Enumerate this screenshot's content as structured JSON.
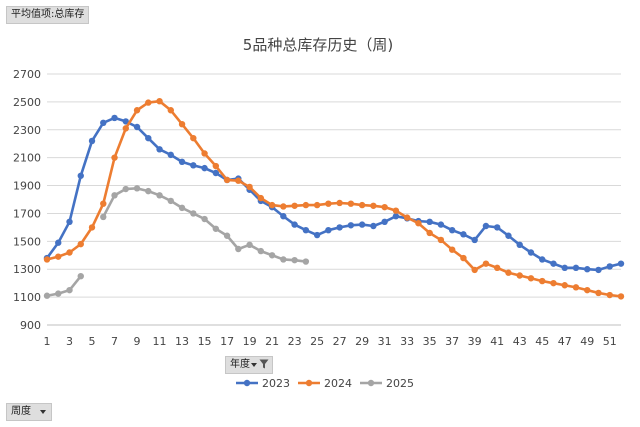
{
  "pivot": {
    "value_field": "平均值项:总库存",
    "column_field": "年度",
    "row_field": "周度"
  },
  "colors": {
    "2023": "#4472c4",
    "2024": "#ed7d31",
    "2025": "#a5a5a5",
    "grid": "#d9d9d9",
    "axis": "#bfbfbf"
  },
  "chart_data": {
    "type": "line",
    "title": "5品种总库存历史（周)",
    "xlabel": "",
    "ylabel": "",
    "xlim": [
      1,
      52
    ],
    "ylim": [
      900,
      2700
    ],
    "yticks": [
      900,
      1100,
      1300,
      1500,
      1700,
      1900,
      2100,
      2300,
      2500,
      2700
    ],
    "xticks": [
      1,
      3,
      5,
      7,
      9,
      11,
      13,
      15,
      17,
      19,
      21,
      23,
      25,
      27,
      29,
      31,
      33,
      35,
      37,
      39,
      41,
      43,
      45,
      47,
      49,
      51
    ],
    "grid": true,
    "legend": "bottom",
    "series": [
      {
        "name": "2023",
        "values": [
          1380,
          1490,
          1640,
          1970,
          2220,
          2350,
          2385,
          2360,
          2320,
          2240,
          2160,
          2120,
          2070,
          2045,
          2025,
          1990,
          1940,
          1950,
          1870,
          1790,
          1745,
          1680,
          1620,
          1580,
          1545,
          1580,
          1600,
          1615,
          1620,
          1610,
          1640,
          1680,
          1665,
          1645,
          1640,
          1620,
          1580,
          1550,
          1510,
          1610,
          1600,
          1540,
          1475,
          1420,
          1370,
          1340,
          1310,
          1310,
          1300,
          1295,
          1320,
          1340
        ]
      },
      {
        "name": "2024",
        "values": [
          1370,
          1390,
          1420,
          1480,
          1600,
          1770,
          2100,
          2310,
          2440,
          2495,
          2505,
          2440,
          2340,
          2240,
          2130,
          2040,
          1940,
          1935,
          1890,
          1810,
          1760,
          1750,
          1755,
          1760,
          1760,
          1770,
          1775,
          1770,
          1760,
          1755,
          1745,
          1720,
          1670,
          1630,
          1560,
          1510,
          1440,
          1380,
          1295,
          1340,
          1310,
          1275,
          1255,
          1235,
          1215,
          1200,
          1185,
          1170,
          1150,
          1130,
          1115,
          1105
        ]
      },
      {
        "name": "2025",
        "values": [
          1110,
          1125,
          1150,
          1250,
          null,
          1675,
          1830,
          1875,
          1880,
          1860,
          1830,
          1790,
          1740,
          1700,
          1660,
          1590,
          1540,
          1445,
          1475,
          1430,
          1400,
          1370,
          1365,
          1355
        ]
      }
    ]
  }
}
